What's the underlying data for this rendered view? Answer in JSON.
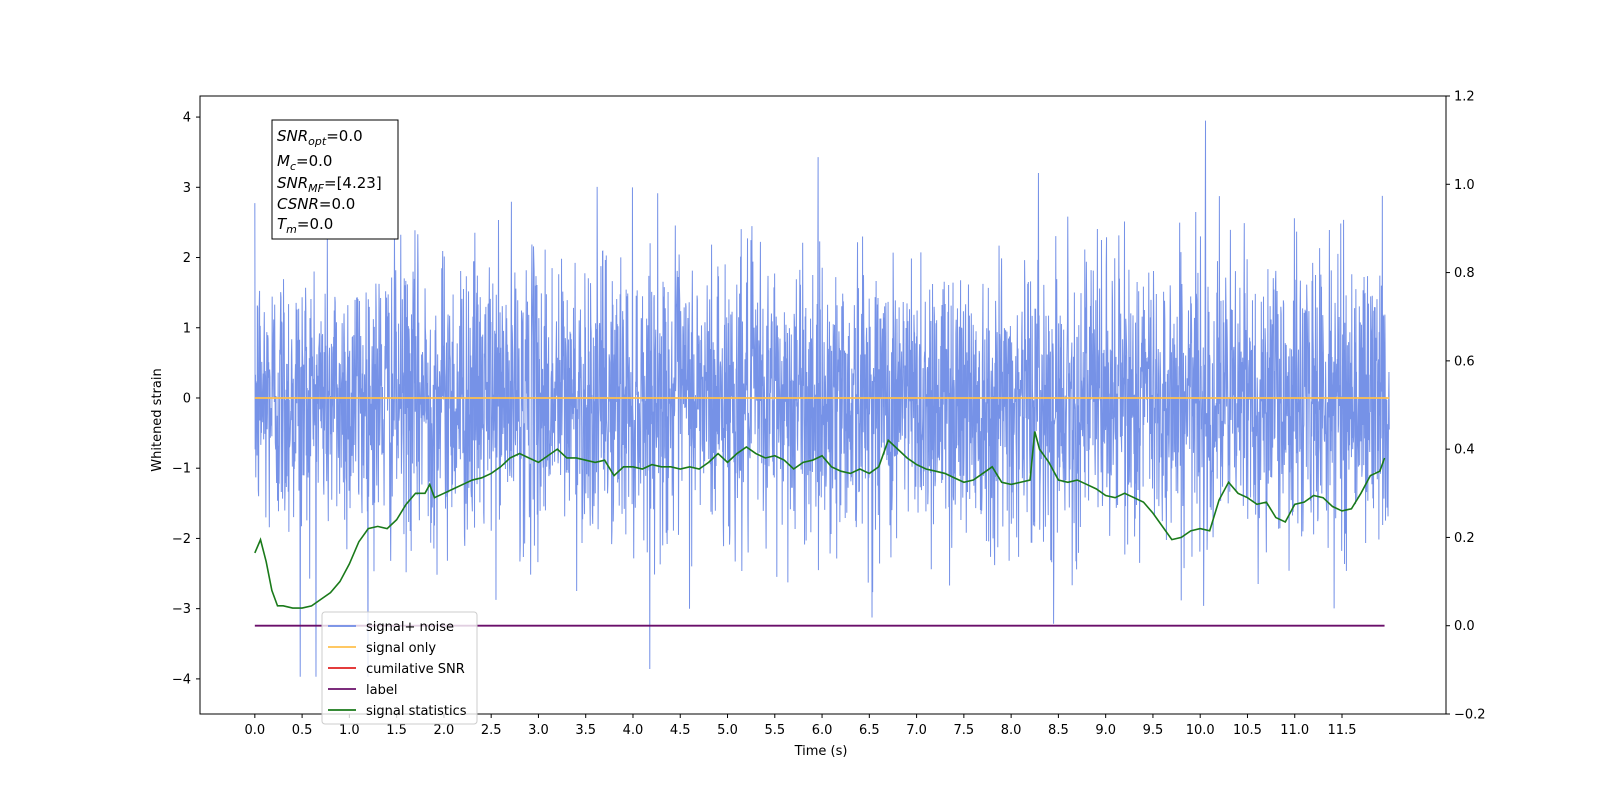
{
  "chart_data": {
    "type": "line",
    "xlabel": "Time (s)",
    "ylabel": "Whitened strain",
    "xlim": [
      -0.58,
      12.6
    ],
    "ylim": [
      -4.5,
      4.3
    ],
    "y2lim": [
      -0.2,
      1.2
    ],
    "x_ticks": [
      "0.0",
      "0.5",
      "1.0",
      "1.5",
      "2.0",
      "2.5",
      "3.0",
      "3.5",
      "4.0",
      "4.5",
      "5.0",
      "5.5",
      "6.0",
      "6.5",
      "7.0",
      "7.5",
      "8.0",
      "8.5",
      "9.0",
      "9.5",
      "10.0",
      "10.5",
      "11.0",
      "11.5"
    ],
    "y_ticks": [
      "4",
      "3",
      "2",
      "1",
      "0",
      "−1",
      "−2",
      "−3",
      "−4"
    ],
    "y2_ticks": [
      "1.2",
      "1.0",
      "0.8",
      "0.6",
      "0.4",
      "0.2",
      "0.0",
      "−0.2"
    ],
    "grid": false,
    "legend_position": "lower-left",
    "legend": {
      "entries": [
        {
          "label": "signal+ noise",
          "color": "#6f8ce6"
        },
        {
          "label": "signal only",
          "color": "#ffc04d"
        },
        {
          "label": "cumilative SNR",
          "color": "#e02020"
        },
        {
          "label": "label",
          "color": "#6a0f6a"
        },
        {
          "label": "signal statistics",
          "color": "#1a7a1a"
        }
      ]
    },
    "annotation": {
      "snr_opt": {
        "main": "SNR",
        "sub": "opt",
        "value": "=0.0"
      },
      "mc": {
        "main": "M",
        "sub": "c",
        "value": "=0.0"
      },
      "snr_mf": {
        "main": "SNR",
        "sub": "MF",
        "value": "=[4.23]"
      },
      "csnr": {
        "main": "CSNR",
        "value": "=0.0"
      },
      "tm": {
        "main": "T",
        "sub": "m",
        "value": "=0.0"
      }
    },
    "series": [
      {
        "name": "signal+ noise",
        "axis": "left",
        "color": "#6f8ce6",
        "t_start": 0.0,
        "t_end": 12.0,
        "std": 1.0,
        "y_max": 3.95,
        "y_min": -3.97
      },
      {
        "name": "signal only",
        "axis": "left",
        "color": "#ffc04d",
        "x": [
          0.0,
          12.0
        ],
        "y": [
          0.0,
          0.0
        ]
      },
      {
        "name": "label",
        "axis": "right",
        "color": "#6a0f6a",
        "x": [
          0.0,
          11.95
        ],
        "y": [
          0.0,
          0.0
        ]
      },
      {
        "name": "signal statistics",
        "axis": "right",
        "color": "#1a7a1a",
        "x": [
          0.0,
          0.06,
          0.12,
          0.18,
          0.24,
          0.3,
          0.4,
          0.5,
          0.6,
          0.7,
          0.8,
          0.9,
          1.0,
          1.1,
          1.2,
          1.3,
          1.4,
          1.5,
          1.6,
          1.7,
          1.8,
          1.85,
          1.9,
          2.0,
          2.1,
          2.2,
          2.3,
          2.4,
          2.5,
          2.6,
          2.7,
          2.8,
          2.9,
          3.0,
          3.1,
          3.2,
          3.3,
          3.4,
          3.5,
          3.6,
          3.7,
          3.8,
          3.9,
          4.0,
          4.1,
          4.2,
          4.3,
          4.4,
          4.5,
          4.6,
          4.7,
          4.8,
          4.9,
          5.0,
          5.1,
          5.2,
          5.3,
          5.4,
          5.5,
          5.6,
          5.7,
          5.8,
          5.9,
          6.0,
          6.1,
          6.2,
          6.3,
          6.4,
          6.5,
          6.6,
          6.7,
          6.8,
          6.9,
          7.0,
          7.1,
          7.2,
          7.3,
          7.4,
          7.5,
          7.6,
          7.7,
          7.8,
          7.9,
          8.0,
          8.1,
          8.2,
          8.25,
          8.3,
          8.4,
          8.5,
          8.6,
          8.7,
          8.8,
          8.9,
          9.0,
          9.1,
          9.2,
          9.3,
          9.4,
          9.5,
          9.6,
          9.7,
          9.8,
          9.9,
          10.0,
          10.1,
          10.2,
          10.3,
          10.4,
          10.5,
          10.6,
          10.7,
          10.8,
          10.9,
          11.0,
          11.1,
          11.2,
          11.3,
          11.4,
          11.5,
          11.6,
          11.7,
          11.8,
          11.9,
          11.95
        ],
        "y": [
          0.165,
          0.195,
          0.145,
          0.08,
          0.045,
          0.045,
          0.04,
          0.04,
          0.045,
          0.06,
          0.075,
          0.1,
          0.14,
          0.19,
          0.22,
          0.225,
          0.22,
          0.24,
          0.275,
          0.3,
          0.3,
          0.32,
          0.29,
          0.3,
          0.31,
          0.32,
          0.33,
          0.335,
          0.345,
          0.36,
          0.38,
          0.39,
          0.38,
          0.37,
          0.385,
          0.4,
          0.38,
          0.38,
          0.375,
          0.37,
          0.375,
          0.34,
          0.36,
          0.36,
          0.355,
          0.365,
          0.36,
          0.36,
          0.355,
          0.36,
          0.355,
          0.37,
          0.39,
          0.37,
          0.39,
          0.405,
          0.39,
          0.38,
          0.385,
          0.375,
          0.355,
          0.37,
          0.375,
          0.385,
          0.36,
          0.35,
          0.345,
          0.355,
          0.345,
          0.36,
          0.42,
          0.4,
          0.38,
          0.365,
          0.355,
          0.35,
          0.345,
          0.335,
          0.325,
          0.33,
          0.345,
          0.36,
          0.325,
          0.32,
          0.325,
          0.33,
          0.44,
          0.4,
          0.37,
          0.33,
          0.325,
          0.33,
          0.32,
          0.31,
          0.295,
          0.29,
          0.3,
          0.29,
          0.28,
          0.255,
          0.225,
          0.195,
          0.2,
          0.215,
          0.22,
          0.215,
          0.285,
          0.325,
          0.3,
          0.29,
          0.275,
          0.28,
          0.245,
          0.235,
          0.275,
          0.28,
          0.295,
          0.29,
          0.27,
          0.26,
          0.265,
          0.3,
          0.34,
          0.35,
          0.38
        ]
      }
    ]
  }
}
